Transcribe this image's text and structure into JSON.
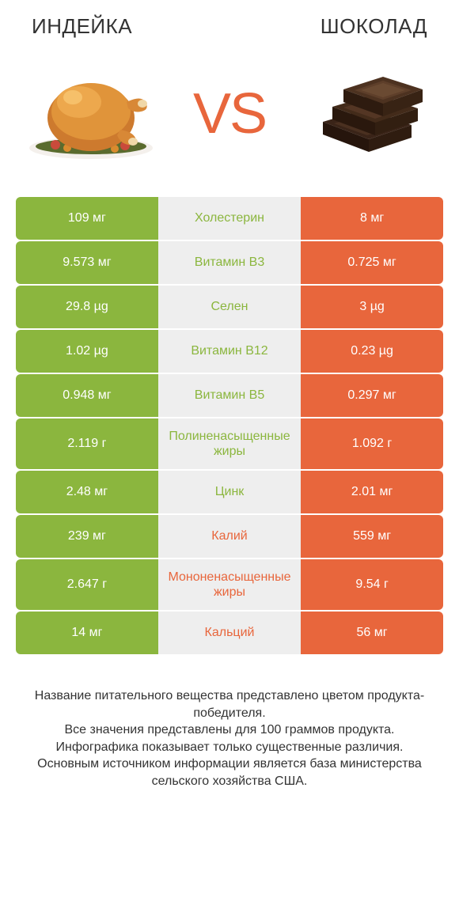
{
  "header": {
    "left": "Индейка",
    "right": "Шоколад"
  },
  "vs": "VS",
  "colors": {
    "green": "#8bb63e",
    "orange": "#e8663c",
    "gray": "#eeeeee",
    "text_dark": "#333333",
    "white": "#ffffff"
  },
  "table": {
    "left_winner_color": "#8bb63e",
    "right_winner_color": "#e8663c",
    "rows": [
      {
        "left": "109 мг",
        "label": "Холестерин",
        "right": "8 мг",
        "winner": "left",
        "tall": false
      },
      {
        "left": "9.573 мг",
        "label": "Витамин B3",
        "right": "0.725 мг",
        "winner": "left",
        "tall": false
      },
      {
        "left": "29.8 µg",
        "label": "Селен",
        "right": "3 µg",
        "winner": "left",
        "tall": false
      },
      {
        "left": "1.02 µg",
        "label": "Витамин B12",
        "right": "0.23 µg",
        "winner": "left",
        "tall": false
      },
      {
        "left": "0.948 мг",
        "label": "Витамин B5",
        "right": "0.297 мг",
        "winner": "left",
        "tall": false
      },
      {
        "left": "2.119 г",
        "label": "Полиненасыщенные жиры",
        "right": "1.092 г",
        "winner": "left",
        "tall": true
      },
      {
        "left": "2.48 мг",
        "label": "Цинк",
        "right": "2.01 мг",
        "winner": "left",
        "tall": false
      },
      {
        "left": "239 мг",
        "label": "Калий",
        "right": "559 мг",
        "winner": "right",
        "tall": false
      },
      {
        "left": "2.647 г",
        "label": "Мононенасыщенные жиры",
        "right": "9.54 г",
        "winner": "right",
        "tall": true
      },
      {
        "left": "14 мг",
        "label": "Кальций",
        "right": "56 мг",
        "winner": "right",
        "tall": false
      }
    ]
  },
  "footnote": "Название питательного вещества представлено цветом продукта-победителя.\nВсе значения представлены для 100 граммов продукта.\nИнфографика показывает только существенные различия.\nОсновным источником информации является база министерства сельского хозяйства США."
}
